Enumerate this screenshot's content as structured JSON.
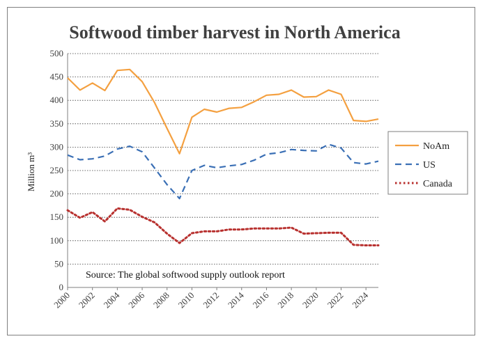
{
  "chart_data": {
    "type": "line",
    "title": "Softwood timber harvest in North America",
    "ylabel": "Million m³",
    "xlabel": "",
    "ylim": [
      0,
      500
    ],
    "xlim": [
      2000,
      2025
    ],
    "yticks": [
      0,
      50,
      100,
      150,
      200,
      250,
      300,
      350,
      400,
      450,
      500
    ],
    "xticks": [
      2000,
      2002,
      2004,
      2006,
      2008,
      2010,
      2012,
      2014,
      2016,
      2018,
      2020,
      2022,
      2024
    ],
    "grid": "horizontal dotted",
    "legend_position": "right",
    "annotation": "Source: The global softwood supply outlook report",
    "x": [
      2000,
      2001,
      2002,
      2003,
      2004,
      2005,
      2006,
      2007,
      2008,
      2009,
      2010,
      2011,
      2012,
      2013,
      2014,
      2015,
      2016,
      2017,
      2018,
      2019,
      2020,
      2021,
      2022,
      2023,
      2024,
      2025
    ],
    "series": [
      {
        "name": "NoAm",
        "color": "#f4a040",
        "style": "solid",
        "values": [
          448,
          422,
          437,
          421,
          464,
          466,
          440,
          395,
          340,
          286,
          364,
          381,
          375,
          383,
          385,
          397,
          411,
          413,
          422,
          407,
          408,
          422,
          413,
          357,
          355,
          360
        ]
      },
      {
        "name": "US",
        "color": "#3a6fb5",
        "style": "dashed",
        "values": [
          283,
          273,
          275,
          281,
          296,
          302,
          290,
          255,
          220,
          190,
          250,
          261,
          256,
          260,
          263,
          272,
          285,
          288,
          295,
          293,
          292,
          306,
          298,
          267,
          264,
          270
        ]
      },
      {
        "name": "Canada",
        "color": "#b8312f",
        "style": "dotted",
        "values": [
          165,
          149,
          161,
          141,
          169,
          166,
          151,
          139,
          115,
          95,
          116,
          120,
          120,
          124,
          124,
          126,
          126,
          126,
          128,
          115,
          116,
          117,
          117,
          91,
          90,
          90
        ]
      }
    ]
  }
}
